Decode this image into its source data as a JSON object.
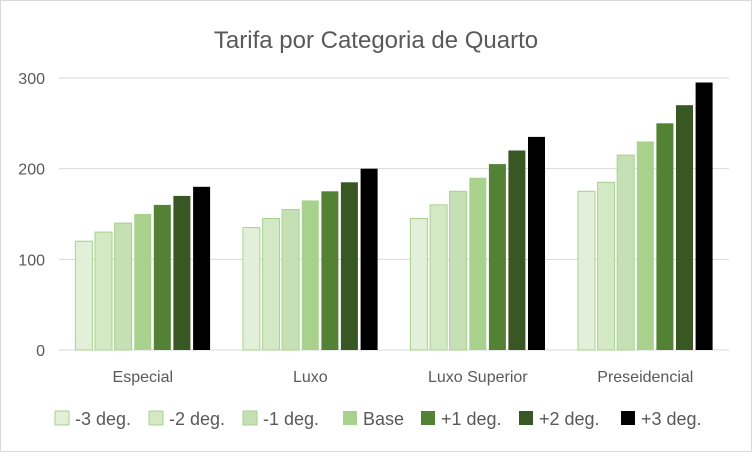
{
  "chart_data": {
    "type": "bar",
    "title": "Tarifa por Categoria de Quarto",
    "xlabel": "",
    "ylabel": "",
    "ylim": [
      0,
      300
    ],
    "yticks": [
      0,
      100,
      200,
      300
    ],
    "ytick_labels": [
      "0",
      "100",
      "200",
      "300"
    ],
    "grid": true,
    "legend_position": "bottom",
    "categories": [
      "Especial",
      "Luxo",
      "Luxo Superior",
      "Preseidencial"
    ],
    "series": [
      {
        "name": "-3 deg.",
        "color": "#e2f0d9",
        "values": [
          120,
          135,
          145,
          175
        ]
      },
      {
        "name": "-2 deg.",
        "color": "#d3e9c6",
        "values": [
          130,
          145,
          160,
          185
        ]
      },
      {
        "name": "-1 deg.",
        "color": "#c5e0b4",
        "values": [
          140,
          155,
          175,
          215
        ]
      },
      {
        "name": "Base",
        "color": "#a9d18e",
        "values": [
          150,
          165,
          190,
          230
        ]
      },
      {
        "name": "+1 deg.",
        "color": "#548235",
        "values": [
          160,
          175,
          205,
          250
        ]
      },
      {
        "name": "+2 deg.",
        "color": "#385723",
        "values": [
          170,
          185,
          220,
          270
        ]
      },
      {
        "name": "+3 deg.",
        "color": "#000000",
        "values": [
          180,
          200,
          235,
          295
        ]
      }
    ]
  }
}
